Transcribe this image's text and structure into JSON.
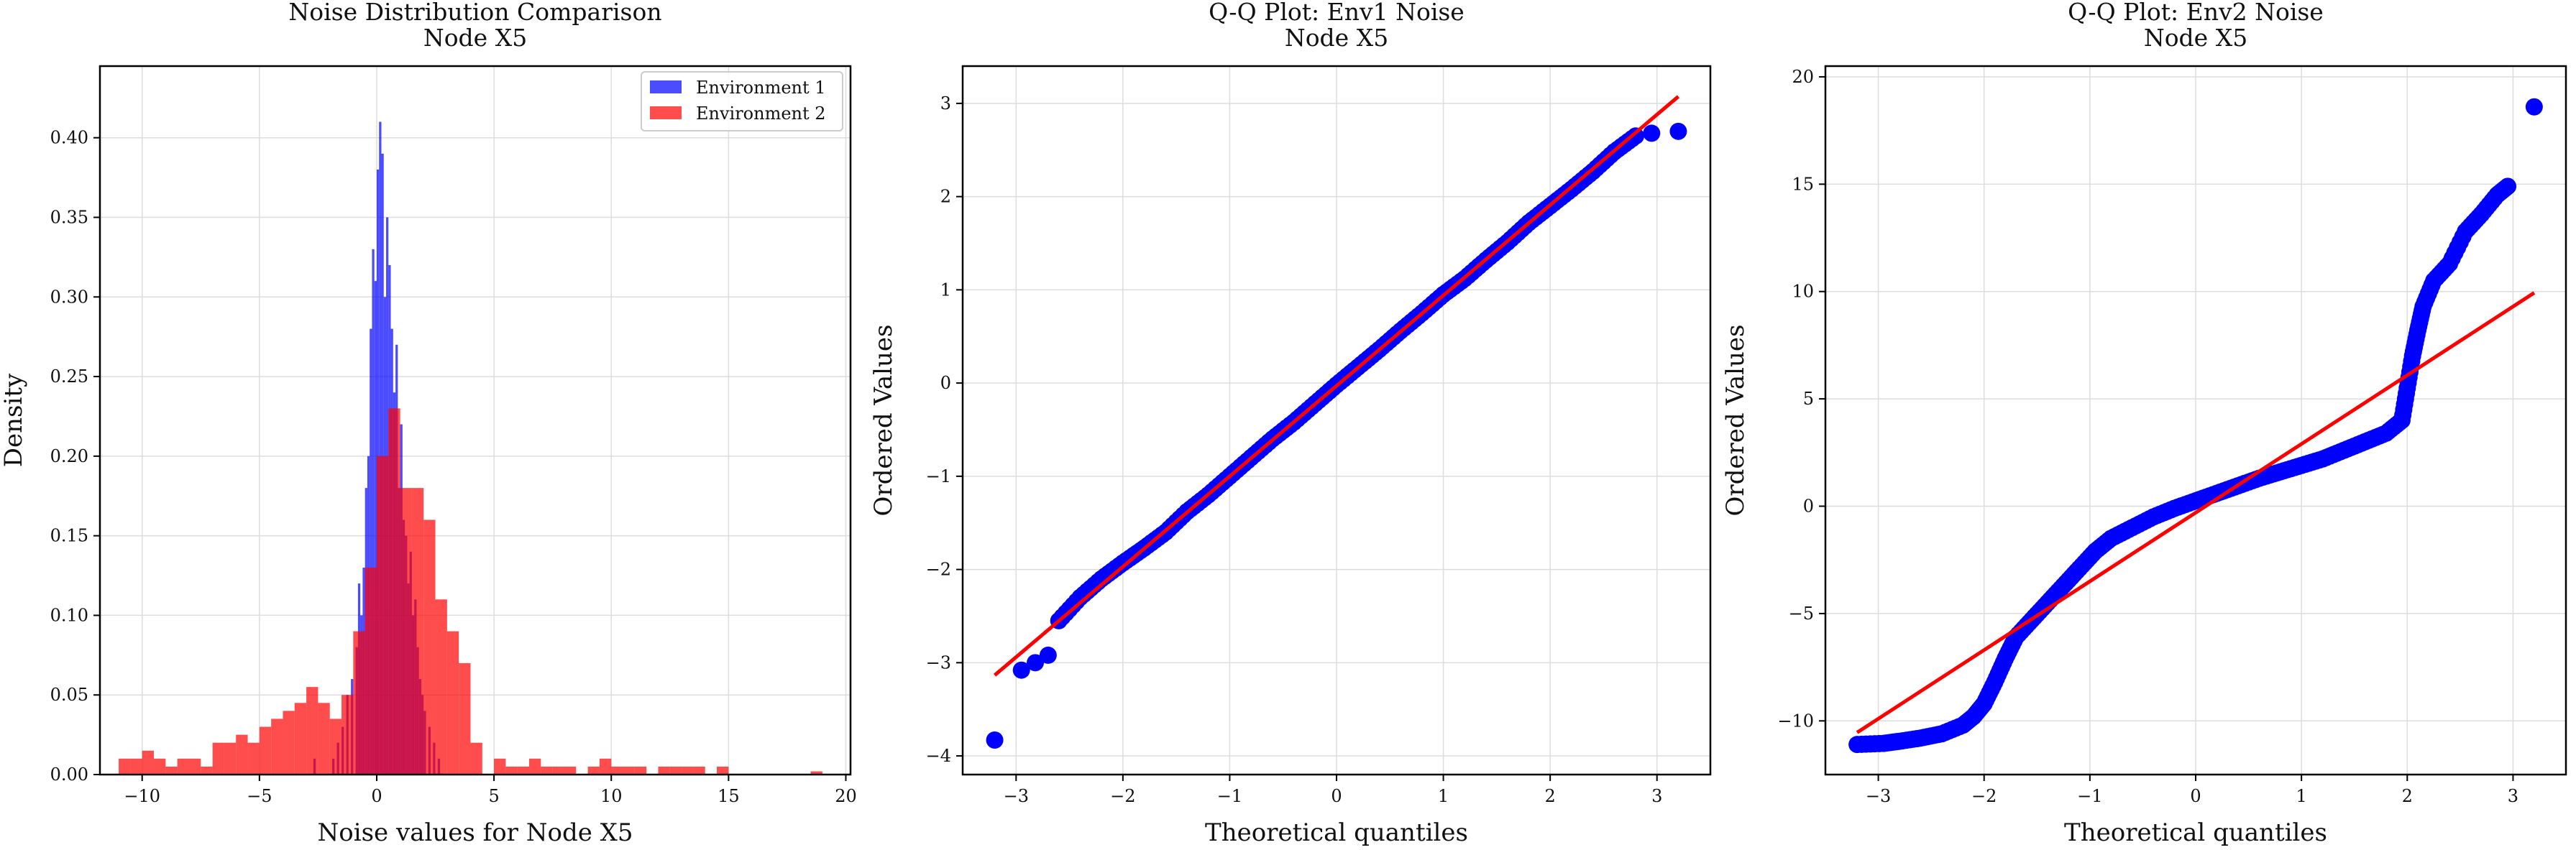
{
  "chart_data": [
    {
      "type": "histogram",
      "title": "Noise Distribution Comparison",
      "subtitle": "Node X5",
      "xlabel": "Noise values for Node X5",
      "ylabel": "Density",
      "xlim": [
        -11.8,
        20.2
      ],
      "ylim": [
        0,
        0.445
      ],
      "xticks": [
        -10,
        -5,
        0,
        5,
        10,
        15,
        20
      ],
      "yticks": [
        0.0,
        0.05,
        0.1,
        0.15,
        0.2,
        0.25,
        0.3,
        0.35,
        0.4
      ],
      "grid": true,
      "legend": "top-right",
      "series": [
        {
          "name": "Environment 1",
          "color": "#0000ff",
          "alpha": 0.7,
          "bin_width": 0.1,
          "bins": [
            [
              -2.7,
              0.01
            ],
            [
              -1.9,
              0.01
            ],
            [
              -1.7,
              0.02
            ],
            [
              -1.5,
              0.03
            ],
            [
              -1.3,
              0.05
            ],
            [
              -1.1,
              0.06
            ],
            [
              -0.9,
              0.08
            ],
            [
              -0.8,
              0.12
            ],
            [
              -0.7,
              0.1
            ],
            [
              -0.6,
              0.13
            ],
            [
              -0.5,
              0.18
            ],
            [
              -0.4,
              0.2
            ],
            [
              -0.3,
              0.28
            ],
            [
              -0.2,
              0.33
            ],
            [
              -0.1,
              0.31
            ],
            [
              0.0,
              0.38
            ],
            [
              0.1,
              0.41
            ],
            [
              0.2,
              0.39
            ],
            [
              0.3,
              0.3
            ],
            [
              0.4,
              0.35
            ],
            [
              0.5,
              0.32
            ],
            [
              0.6,
              0.28
            ],
            [
              0.7,
              0.24
            ],
            [
              0.8,
              0.27
            ],
            [
              0.9,
              0.18
            ],
            [
              1.0,
              0.22
            ],
            [
              1.1,
              0.16
            ],
            [
              1.2,
              0.15
            ],
            [
              1.3,
              0.12
            ],
            [
              1.4,
              0.14
            ],
            [
              1.5,
              0.1
            ],
            [
              1.6,
              0.11
            ],
            [
              1.7,
              0.08
            ],
            [
              1.8,
              0.06
            ],
            [
              1.9,
              0.05
            ],
            [
              2.0,
              0.04
            ],
            [
              2.2,
              0.03
            ],
            [
              2.4,
              0.02
            ],
            [
              2.6,
              0.01
            ]
          ]
        },
        {
          "name": "Environment 2",
          "color": "#ff0000",
          "alpha": 0.7,
          "bin_width": 0.5,
          "bins": [
            [
              -11,
              0.01
            ],
            [
              -10.5,
              0.01
            ],
            [
              -10,
              0.015
            ],
            [
              -9.5,
              0.01
            ],
            [
              -9,
              0.005
            ],
            [
              -8.5,
              0.01
            ],
            [
              -8,
              0.01
            ],
            [
              -7.5,
              0.005
            ],
            [
              -7,
              0.02
            ],
            [
              -6.5,
              0.02
            ],
            [
              -6,
              0.025
            ],
            [
              -5.5,
              0.02
            ],
            [
              -5,
              0.03
            ],
            [
              -4.5,
              0.035
            ],
            [
              -4,
              0.04
            ],
            [
              -3.5,
              0.045
            ],
            [
              -3,
              0.055
            ],
            [
              -2.5,
              0.045
            ],
            [
              -2,
              0.035
            ],
            [
              -1.5,
              0.05
            ],
            [
              -1,
              0.09
            ],
            [
              -0.5,
              0.13
            ],
            [
              0,
              0.2
            ],
            [
              0.5,
              0.23
            ],
            [
              1,
              0.18
            ],
            [
              1.5,
              0.18
            ],
            [
              2,
              0.16
            ],
            [
              2.5,
              0.11
            ],
            [
              3,
              0.09
            ],
            [
              3.5,
              0.07
            ],
            [
              4,
              0.02
            ],
            [
              5,
              0.01
            ],
            [
              5.5,
              0.005
            ],
            [
              6,
              0.005
            ],
            [
              6.5,
              0.01
            ],
            [
              7,
              0.005
            ],
            [
              7.5,
              0.005
            ],
            [
              8,
              0.005
            ],
            [
              9,
              0.005
            ],
            [
              9.5,
              0.01
            ],
            [
              10,
              0.005
            ],
            [
              10.5,
              0.005
            ],
            [
              11,
              0.005
            ],
            [
              12,
              0.005
            ],
            [
              12.5,
              0.005
            ],
            [
              13,
              0.005
            ],
            [
              13.5,
              0.005
            ],
            [
              14.5,
              0.005
            ],
            [
              18.5,
              0.002
            ]
          ]
        }
      ]
    },
    {
      "type": "scatter",
      "title": "Q-Q Plot: Env1 Noise",
      "subtitle": "Node X5",
      "xlabel": "Theoretical quantiles",
      "ylabel": "Ordered Values",
      "xlim": [
        -3.5,
        3.5
      ],
      "ylim": [
        -4.2,
        3.4
      ],
      "xticks": [
        -3,
        -2,
        -1,
        0,
        1,
        2,
        3
      ],
      "yticks": [
        -4,
        -3,
        -2,
        -1,
        0,
        1,
        2,
        3
      ],
      "grid": true,
      "point_color": "#0000ff",
      "line_color": "#ff0000",
      "fit_line": {
        "slope": 0.97,
        "intercept": -0.03
      },
      "fit_x_range": [
        -3.2,
        3.2
      ],
      "points_curve": [
        [
          -2.6,
          -2.55
        ],
        [
          -2.4,
          -2.3
        ],
        [
          -2.2,
          -2.1
        ],
        [
          -2.0,
          -1.93
        ],
        [
          -1.8,
          -1.77
        ],
        [
          -1.6,
          -1.6
        ],
        [
          -1.4,
          -1.38
        ],
        [
          -1.2,
          -1.2
        ],
        [
          -1.0,
          -1.0
        ],
        [
          -0.8,
          -0.8
        ],
        [
          -0.6,
          -0.6
        ],
        [
          -0.4,
          -0.42
        ],
        [
          -0.2,
          -0.22
        ],
        [
          0.0,
          -0.02
        ],
        [
          0.2,
          0.17
        ],
        [
          0.4,
          0.36
        ],
        [
          0.6,
          0.56
        ],
        [
          0.8,
          0.75
        ],
        [
          1.0,
          0.95
        ],
        [
          1.2,
          1.12
        ],
        [
          1.4,
          1.32
        ],
        [
          1.6,
          1.51
        ],
        [
          1.8,
          1.72
        ],
        [
          2.0,
          1.9
        ],
        [
          2.2,
          2.08
        ],
        [
          2.4,
          2.27
        ],
        [
          2.6,
          2.48
        ],
        [
          2.8,
          2.65
        ]
      ],
      "points_outliers": [
        [
          -3.2,
          -3.83
        ],
        [
          -2.95,
          -3.08
        ],
        [
          -2.82,
          -3.0
        ],
        [
          -2.7,
          -2.92
        ],
        [
          2.95,
          2.68
        ],
        [
          3.2,
          2.7
        ]
      ]
    },
    {
      "type": "scatter",
      "title": "Q-Q Plot: Env2 Noise",
      "subtitle": "Node X5",
      "xlabel": "Theoretical quantiles",
      "ylabel": "Ordered Values",
      "xlim": [
        -3.5,
        3.5
      ],
      "ylim": [
        -12.5,
        20.5
      ],
      "xticks": [
        -3,
        -2,
        -1,
        0,
        1,
        2,
        3
      ],
      "yticks": [
        -10,
        -5,
        0,
        5,
        10,
        15,
        20
      ],
      "grid": true,
      "point_color": "#0000ff",
      "line_color": "#ff0000",
      "fit_line": {
        "slope": 3.2,
        "intercept": -0.3
      },
      "fit_x_range": [
        -3.2,
        3.2
      ],
      "points_curve": [
        [
          -3.2,
          -11.1
        ],
        [
          -2.95,
          -11.05
        ],
        [
          -2.8,
          -10.95
        ],
        [
          -2.6,
          -10.8
        ],
        [
          -2.4,
          -10.6
        ],
        [
          -2.2,
          -10.2
        ],
        [
          -2.1,
          -9.8
        ],
        [
          -2.0,
          -9.2
        ],
        [
          -1.9,
          -8.2
        ],
        [
          -1.8,
          -7.1
        ],
        [
          -1.7,
          -6.1
        ],
        [
          -1.55,
          -5.3
        ],
        [
          -1.4,
          -4.5
        ],
        [
          -1.25,
          -3.7
        ],
        [
          -1.1,
          -2.9
        ],
        [
          -0.95,
          -2.1
        ],
        [
          -0.8,
          -1.5
        ],
        [
          -0.6,
          -1.0
        ],
        [
          -0.4,
          -0.5
        ],
        [
          -0.2,
          -0.1
        ],
        [
          0.0,
          0.25
        ],
        [
          0.2,
          0.6
        ],
        [
          0.4,
          0.95
        ],
        [
          0.6,
          1.3
        ],
        [
          0.8,
          1.6
        ],
        [
          1.0,
          1.9
        ],
        [
          1.2,
          2.2
        ],
        [
          1.4,
          2.6
        ],
        [
          1.6,
          3.0
        ],
        [
          1.8,
          3.4
        ],
        [
          1.95,
          4.0
        ],
        [
          2.0,
          5.5
        ],
        [
          2.05,
          7.0
        ],
        [
          2.1,
          8.2
        ],
        [
          2.15,
          9.3
        ],
        [
          2.25,
          10.5
        ],
        [
          2.4,
          11.3
        ],
        [
          2.55,
          12.8
        ],
        [
          2.7,
          13.6
        ],
        [
          2.85,
          14.5
        ],
        [
          2.95,
          14.9
        ]
      ],
      "points_outliers": [
        [
          3.2,
          18.6
        ]
      ]
    }
  ]
}
